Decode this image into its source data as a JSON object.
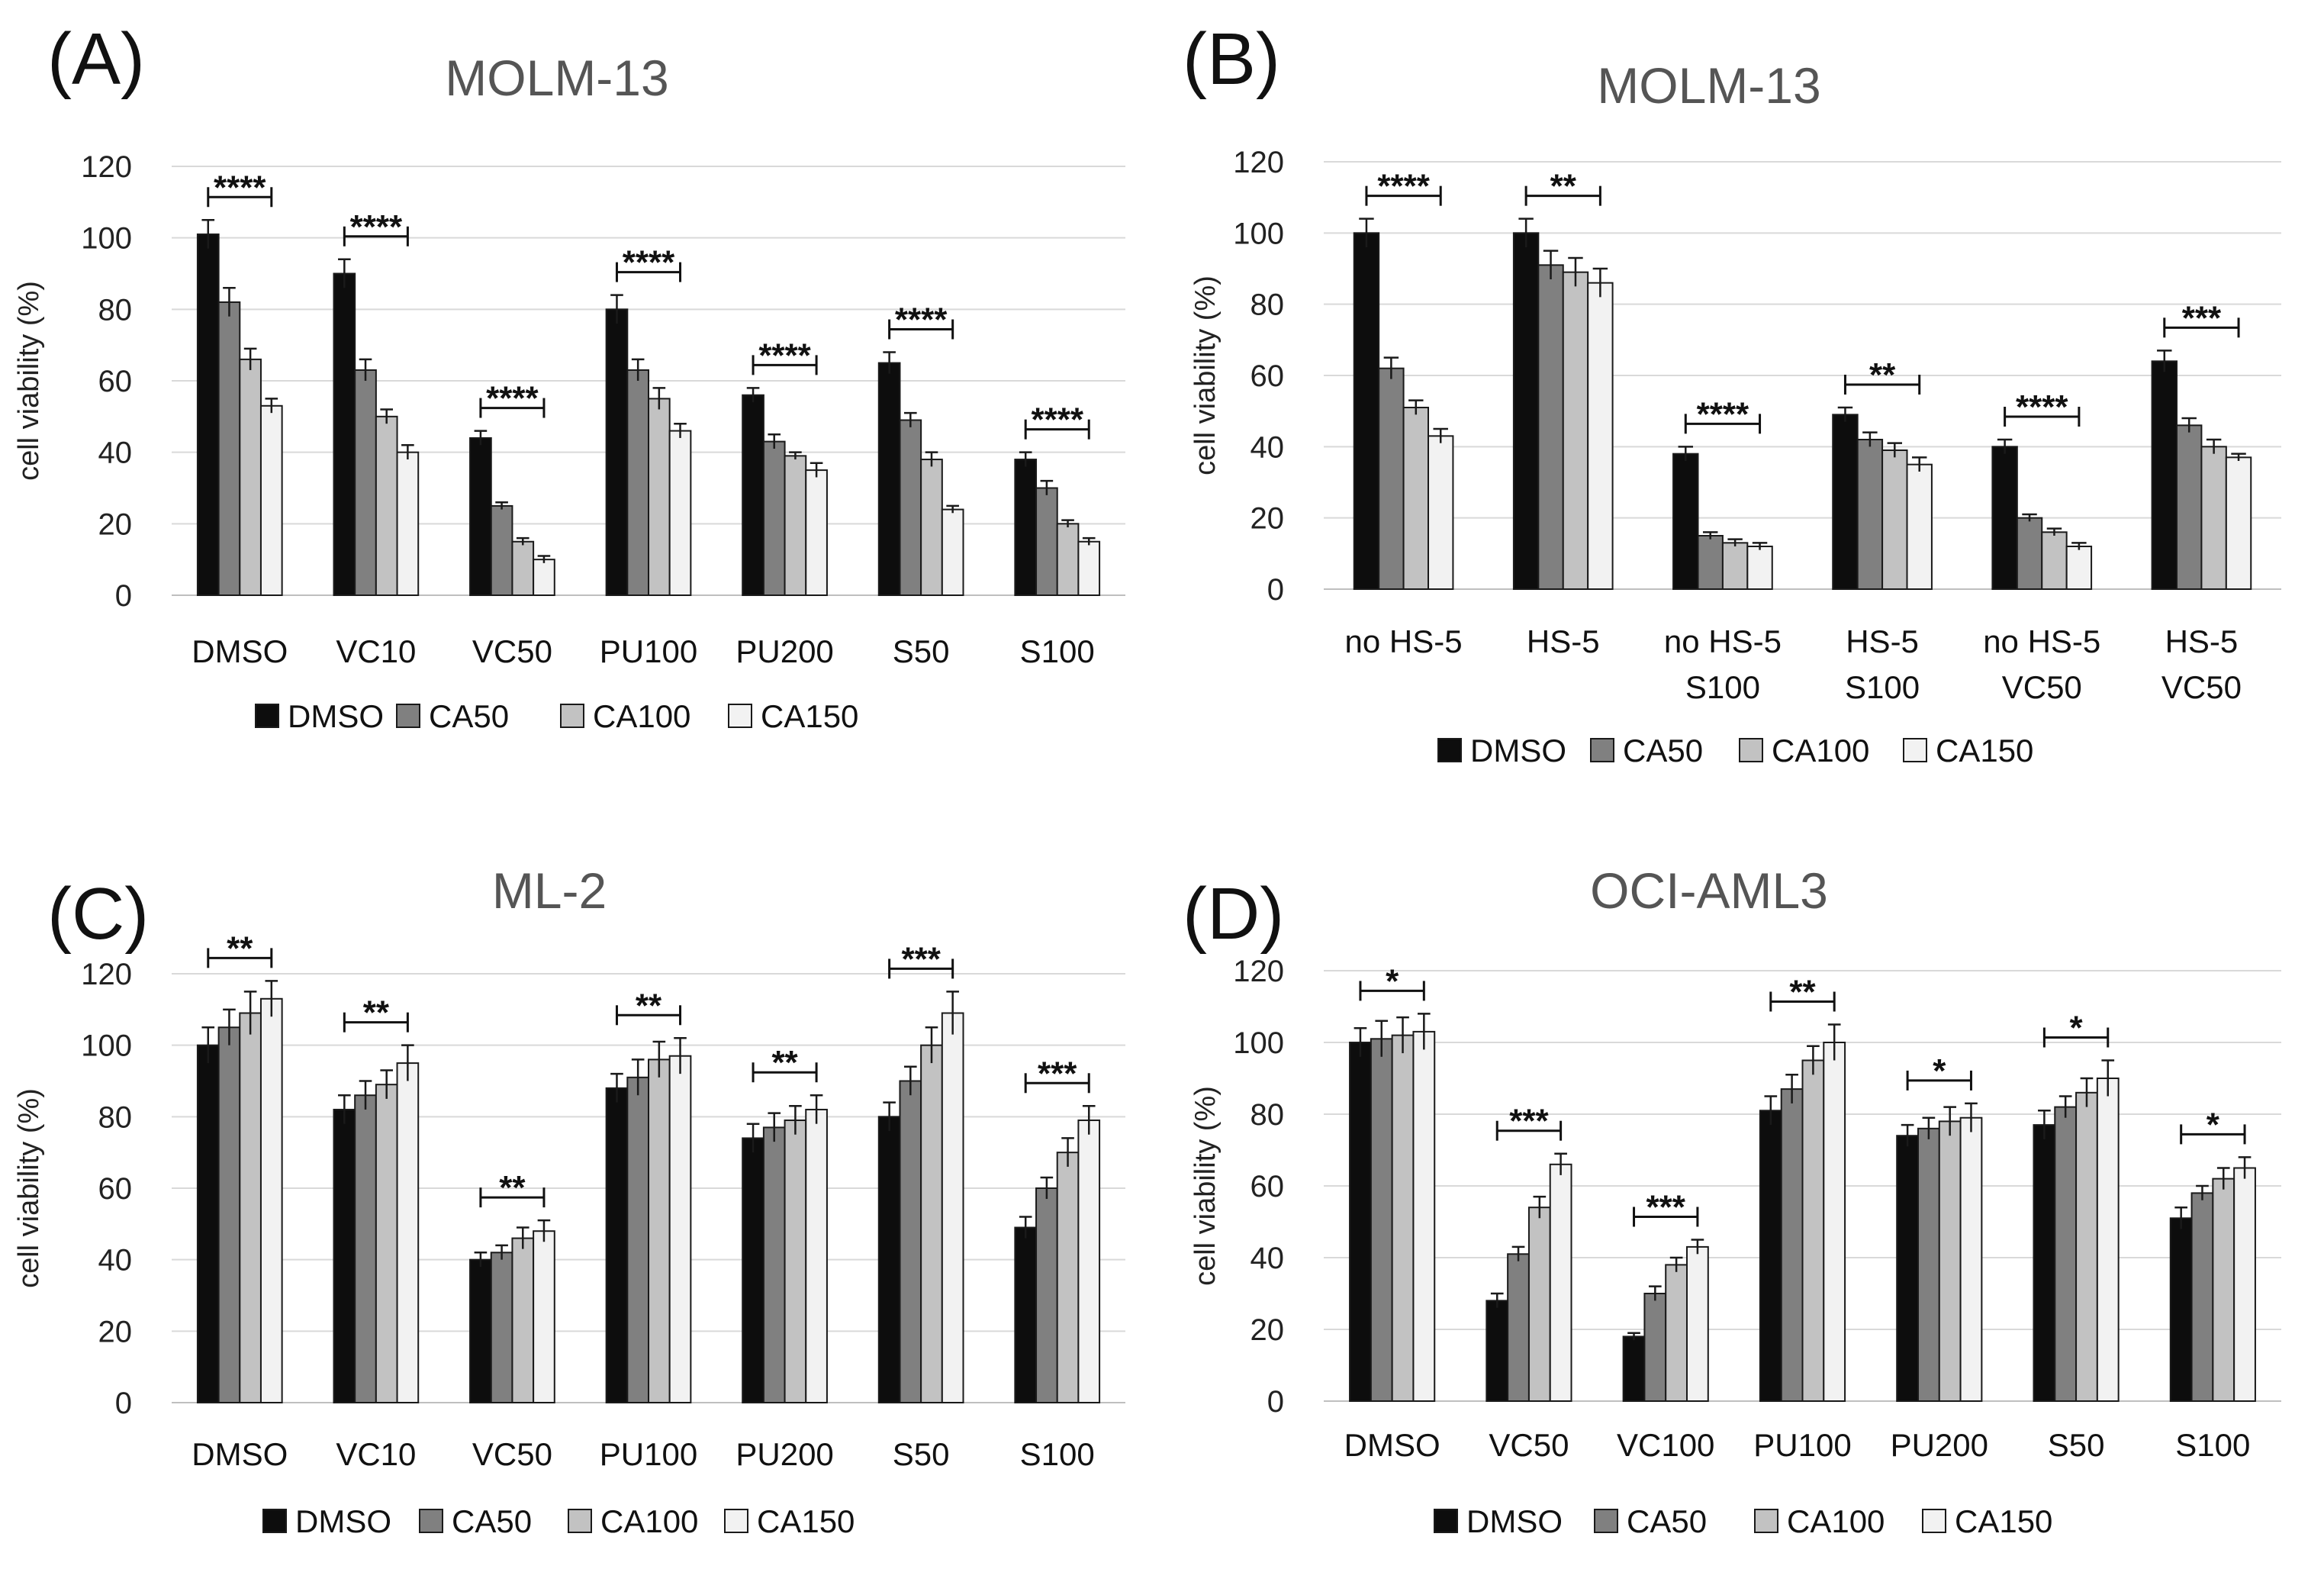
{
  "series_fill": {
    "DMSO": "#0d0d0d",
    "CA50": "#808080",
    "CA100": "#c2c2c2",
    "CA150": "#f2f2f2"
  },
  "chart_data": [
    {
      "panel": "(A)",
      "type": "bar",
      "title": "MOLM-13",
      "ylabel": "cell viability (%)",
      "ylim": [
        0,
        120
      ],
      "yticks": [
        "0",
        "20",
        "40",
        "60",
        "80",
        "100",
        "120"
      ],
      "categories": [
        [
          "DMSO"
        ],
        [
          "VC10"
        ],
        [
          "VC50"
        ],
        [
          "PU100"
        ],
        [
          "PU200"
        ],
        [
          "S50"
        ],
        [
          "S100"
        ]
      ],
      "series": [
        {
          "name": "DMSO",
          "values": [
            101,
            90,
            44,
            80,
            56,
            65,
            38
          ],
          "errors": [
            4,
            4,
            2,
            4,
            2,
            3,
            2
          ]
        },
        {
          "name": "CA50",
          "values": [
            82,
            63,
            25,
            63,
            43,
            49,
            30
          ],
          "errors": [
            4,
            3,
            1,
            3,
            2,
            2,
            2
          ]
        },
        {
          "name": "CA100",
          "values": [
            66,
            50,
            15,
            55,
            39,
            38,
            20
          ],
          "errors": [
            3,
            2,
            1,
            3,
            1,
            2,
            1
          ]
        },
        {
          "name": "CA150",
          "values": [
            53,
            40,
            10,
            46,
            35,
            24,
            15
          ],
          "errors": [
            2,
            2,
            1,
            2,
            2,
            1,
            1
          ]
        }
      ],
      "significance": [
        "****",
        "****",
        "****",
        "****",
        "****",
        "****",
        "****"
      ],
      "legend": [
        "DMSO",
        "CA50",
        "CA100",
        "CA150"
      ]
    },
    {
      "panel": "(B)",
      "type": "bar",
      "title": "MOLM-13",
      "ylabel": "cell viability (%)",
      "ylim": [
        0,
        120
      ],
      "yticks": [
        "0",
        "20",
        "40",
        "60",
        "80",
        "100",
        "120"
      ],
      "categories": [
        [
          "no HS-5"
        ],
        [
          "HS-5"
        ],
        [
          "no HS-5",
          "S100"
        ],
        [
          "HS-5",
          "S100"
        ],
        [
          "no HS-5",
          "VC50"
        ],
        [
          "HS-5",
          "VC50"
        ]
      ],
      "series": [
        {
          "name": "DMSO",
          "values": [
            100,
            100,
            38,
            49,
            40,
            64
          ],
          "errors": [
            4,
            4,
            2,
            2,
            2,
            3
          ]
        },
        {
          "name": "CA50",
          "values": [
            62,
            91,
            15,
            42,
            20,
            46
          ],
          "errors": [
            3,
            4,
            1,
            2,
            1,
            2
          ]
        },
        {
          "name": "CA100",
          "values": [
            51,
            89,
            13,
            39,
            16,
            40
          ],
          "errors": [
            2,
            4,
            1,
            2,
            1,
            2
          ]
        },
        {
          "name": "CA150",
          "values": [
            43,
            86,
            12,
            35,
            12,
            37
          ],
          "errors": [
            2,
            4,
            1,
            2,
            1,
            1
          ]
        }
      ],
      "significance": [
        "****",
        "**",
        "****",
        "**",
        "****",
        "***"
      ],
      "legend": [
        "DMSO",
        "CA50",
        "CA100",
        "CA150"
      ]
    },
    {
      "panel": "(C)",
      "type": "bar",
      "title": "ML-2",
      "ylabel": "cell viability (%)",
      "ylim": [
        0,
        120
      ],
      "yticks": [
        "0",
        "20",
        "40",
        "60",
        "80",
        "100",
        "120"
      ],
      "categories": [
        [
          "DMSO"
        ],
        [
          "VC10"
        ],
        [
          "VC50"
        ],
        [
          "PU100"
        ],
        [
          "PU200"
        ],
        [
          "S50"
        ],
        [
          "S100"
        ]
      ],
      "series": [
        {
          "name": "DMSO",
          "values": [
            100,
            82,
            40,
            88,
            74,
            80,
            49
          ],
          "errors": [
            5,
            4,
            2,
            4,
            4,
            4,
            3
          ]
        },
        {
          "name": "CA50",
          "values": [
            105,
            86,
            42,
            91,
            77,
            90,
            60
          ],
          "errors": [
            5,
            4,
            2,
            5,
            4,
            4,
            3
          ]
        },
        {
          "name": "CA100",
          "values": [
            109,
            89,
            46,
            96,
            79,
            100,
            70
          ],
          "errors": [
            6,
            4,
            3,
            5,
            4,
            5,
            4
          ]
        },
        {
          "name": "CA150",
          "values": [
            113,
            95,
            48,
            97,
            82,
            109,
            79
          ],
          "errors": [
            5,
            5,
            3,
            5,
            4,
            6,
            4
          ]
        }
      ],
      "significance": [
        "**",
        "**",
        "**",
        "**",
        "**",
        "***",
        "***"
      ],
      "legend": [
        "DMSO",
        "CA50",
        "CA100",
        "CA150"
      ]
    },
    {
      "panel": "(D)",
      "type": "bar",
      "title": "OCI-AML3",
      "ylabel": "cell viability (%)",
      "ylim": [
        0,
        120
      ],
      "yticks": [
        "0",
        "20",
        "40",
        "60",
        "80",
        "100",
        "120"
      ],
      "categories": [
        [
          "DMSO"
        ],
        [
          "VC50"
        ],
        [
          "VC100"
        ],
        [
          "PU100"
        ],
        [
          "PU200"
        ],
        [
          "S50"
        ],
        [
          "S100"
        ]
      ],
      "series": [
        {
          "name": "DMSO",
          "values": [
            100,
            28,
            18,
            81,
            74,
            77,
            51
          ],
          "errors": [
            4,
            2,
            1,
            4,
            3,
            4,
            3
          ]
        },
        {
          "name": "CA50",
          "values": [
            101,
            41,
            30,
            87,
            76,
            82,
            58
          ],
          "errors": [
            5,
            2,
            2,
            4,
            3,
            3,
            2
          ]
        },
        {
          "name": "CA100",
          "values": [
            102,
            54,
            38,
            95,
            78,
            86,
            62
          ],
          "errors": [
            5,
            3,
            2,
            4,
            4,
            4,
            3
          ]
        },
        {
          "name": "CA150",
          "values": [
            103,
            66,
            43,
            100,
            79,
            90,
            65
          ],
          "errors": [
            5,
            3,
            2,
            5,
            4,
            5,
            3
          ]
        }
      ],
      "significance": [
        "*",
        "***",
        "***",
        "**",
        "*",
        "*",
        "*"
      ],
      "legend": [
        "DMSO",
        "CA50",
        "CA100",
        "CA150"
      ]
    }
  ]
}
